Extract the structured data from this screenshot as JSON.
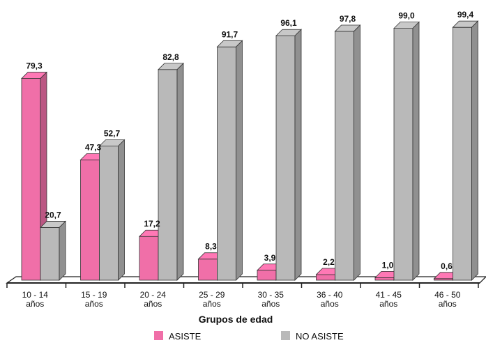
{
  "chart_data": {
    "type": "bar",
    "title": "",
    "xlabel": "Grupos de edad",
    "ylabel": "",
    "ylim": [
      0,
      100
    ],
    "grid": false,
    "legend_position": "bottom",
    "categories": [
      [
        "10 - 14",
        "años"
      ],
      [
        "15 - 19",
        "años"
      ],
      [
        "20 - 24",
        "años"
      ],
      [
        "25 - 29",
        "años"
      ],
      [
        "30 - 35",
        "años"
      ],
      [
        "36 - 40",
        "años"
      ],
      [
        "41 - 45",
        "años"
      ],
      [
        "46 - 50",
        "años"
      ]
    ],
    "series": [
      {
        "name": "ASISTE",
        "color": "#f06fa8",
        "values": [
          79.3,
          47.3,
          17.2,
          8.3,
          3.9,
          2.2,
          1.0,
          0.6
        ],
        "labels": [
          "79,3",
          "47,3",
          "17,2",
          "8,3",
          "3,9",
          "2,2",
          "1,0",
          "0,6"
        ]
      },
      {
        "name": "NO ASISTE",
        "color": "#b9b9b9",
        "values": [
          20.7,
          52.7,
          82.8,
          91.7,
          96.1,
          97.8,
          99.0,
          99.4
        ],
        "labels": [
          "20,7",
          "52,7",
          "82,8",
          "91,7",
          "96,1",
          "97,8",
          "99,0",
          "99,4"
        ]
      }
    ]
  }
}
